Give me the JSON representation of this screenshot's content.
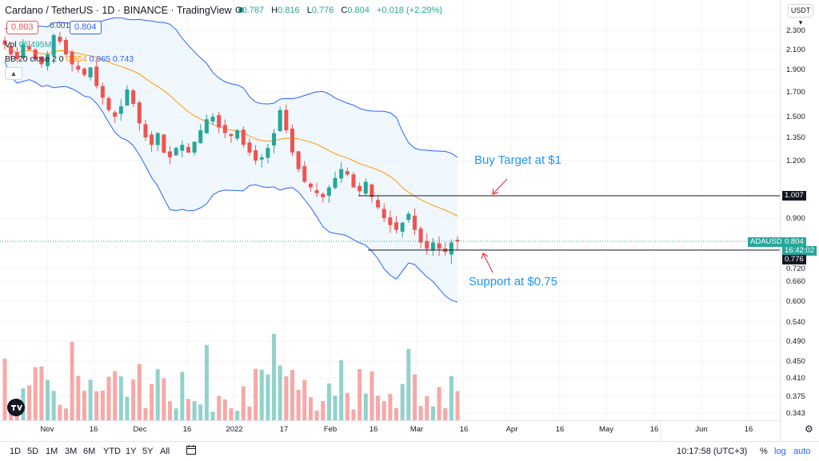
{
  "header": {
    "title": "Cardano / TetherUS · 1D · BINANCE · TradingView",
    "ohlc": [
      {
        "label": "O",
        "value": "0.787"
      },
      {
        "label": "H",
        "value": "0.816"
      },
      {
        "label": "L",
        "value": "0.776"
      },
      {
        "label": "C",
        "value": "0.804"
      },
      {
        "label": "",
        "value": "+0.018 (+2.29%)"
      }
    ],
    "bid_price": "0.803",
    "spread": "0.001",
    "ask_price": "0.804"
  },
  "indicators": {
    "volume_label": "Vol",
    "volume_value": "96.495M",
    "bb_label": "BB 20 close 2 0",
    "bb_basis": "0.854",
    "bb_upper": "0.965",
    "bb_lower": "0.743"
  },
  "currency": "USDT",
  "colors": {
    "up": "#26a69a",
    "down": "#ef5350",
    "bb_band": "#2962ff",
    "bb_basis": "#ff9800",
    "annotation": "#2196f3",
    "arrow": "#f23645"
  },
  "price_axis": {
    "ticks": [
      "2.300",
      "2.100",
      "1.900",
      "1.700",
      "1.500",
      "1.350",
      "1.200",
      "1.007",
      "0.900",
      "0.804",
      "0.720",
      "0.660",
      "0.600",
      "0.540",
      "0.490",
      "0.450",
      "0.410",
      "0.375",
      "0.343"
    ]
  },
  "time_axis": {
    "labels": [
      "Nov",
      "16",
      "Dec",
      "16",
      "2022",
      "17",
      "Feb",
      "16",
      "Mar",
      "16",
      "Apr",
      "16",
      "May",
      "16",
      "Jun",
      "16"
    ]
  },
  "annotations": {
    "buy_target": "Buy Target at $1",
    "support": "Support at $0.75"
  },
  "price_tags": {
    "resistance": "1.007",
    "symbol": "ADAUSDT",
    "last_price": "0.804",
    "countdown": "16:42:02",
    "support": "0.776"
  },
  "toolbar": {
    "ranges": [
      "1D",
      "5D",
      "1M",
      "3M",
      "6M",
      "YTD",
      "1Y",
      "5Y",
      "All"
    ],
    "time": "10:17:58 (UTC+3)",
    "percent": "%",
    "log": "log",
    "auto": "auto"
  },
  "chart_data": {
    "type": "candlestick",
    "x_labels": [
      "Nov",
      "16",
      "Dec",
      "16",
      "2022",
      "17",
      "Feb",
      "16",
      "Mar",
      "16"
    ],
    "close": [
      2.15,
      2.05,
      2.0,
      2.15,
      2.1,
      2.0,
      1.95,
      2.05,
      2.25,
      2.18,
      2.05,
      1.95,
      1.9,
      1.85,
      1.92,
      1.75,
      1.65,
      1.55,
      1.5,
      1.58,
      1.72,
      1.6,
      1.45,
      1.35,
      1.3,
      1.38,
      1.25,
      1.22,
      1.28,
      1.3,
      1.25,
      1.32,
      1.4,
      1.48,
      1.5,
      1.42,
      1.38,
      1.36,
      1.4,
      1.3,
      1.25,
      1.2,
      1.22,
      1.28,
      1.38,
      1.55,
      1.4,
      1.25,
      1.15,
      1.08,
      1.05,
      1.02,
      1.0,
      1.05,
      1.1,
      1.15,
      1.12,
      1.05,
      1.03,
      1.08,
      1.0,
      0.95,
      0.9,
      0.87,
      0.85,
      0.88,
      0.92,
      0.85,
      0.8,
      0.78,
      0.8,
      0.78,
      0.77,
      0.8,
      0.804
    ],
    "volume_range": [
      0,
      100
    ]
  }
}
